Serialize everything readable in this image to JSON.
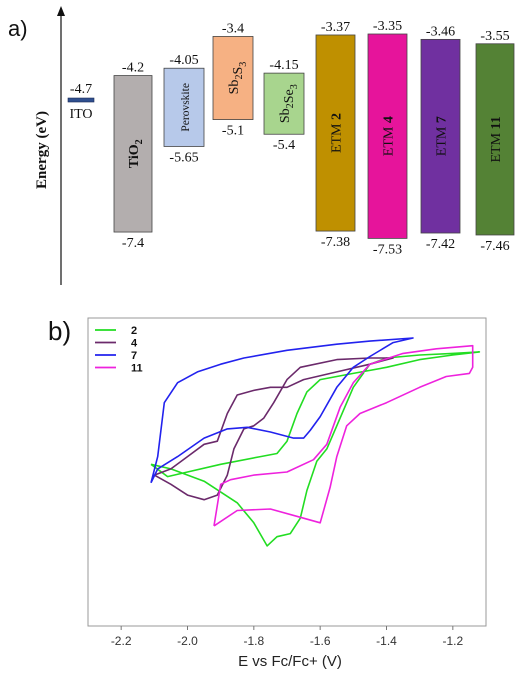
{
  "panel_a": {
    "label": "a)",
    "ylabel": "Energy (eV)",
    "levels": [
      {
        "name": "ITO",
        "lumo": -4.7,
        "homo": null,
        "lumo_text": "-4.7",
        "homo_text": "",
        "color": "#2f4f8f"
      },
      {
        "name": "TiO2",
        "lumo": -4.2,
        "homo": -7.4,
        "lumo_text": "-4.2",
        "homo_text": "-7.4",
        "color": "#b3aeae"
      },
      {
        "name": "Perovskite",
        "lumo": -4.05,
        "homo": -5.65,
        "lumo_text": "-4.05",
        "homo_text": "-5.65",
        "color": "#b7c9ea"
      },
      {
        "name": "Sb2S3",
        "lumo": -3.4,
        "homo": -5.1,
        "lumo_text": "-3.4",
        "homo_text": "-5.1",
        "color": "#f6b183"
      },
      {
        "name": "Sb2Se3",
        "lumo": -4.15,
        "homo": -5.4,
        "lumo_text": "-4.15",
        "homo_text": "-5.4",
        "color": "#a8d58e"
      },
      {
        "name": "ETM 2",
        "lumo": -3.37,
        "homo": -7.38,
        "lumo_text": "-3.37",
        "homo_text": "-7.38",
        "color": "#bf9000"
      },
      {
        "name": "ETM 4",
        "lumo": -3.35,
        "homo": -7.53,
        "lumo_text": "-3.35",
        "homo_text": "-7.53",
        "color": "#e6149b"
      },
      {
        "name": "ETM 7",
        "lumo": -3.46,
        "homo": -7.42,
        "lumo_text": "-3.46",
        "homo_text": "-7.42",
        "color": "#7030a0"
      },
      {
        "name": "ETM 11",
        "lumo": -3.55,
        "homo": -7.46,
        "lumo_text": "-3.55",
        "homo_text": "-7.46",
        "color": "#548235"
      }
    ]
  },
  "chart_data": {
    "type": "line",
    "panel_label": "b)",
    "title": "",
    "xlabel": "E vs Fc/Fc+ (V)",
    "ylabel": "",
    "xlim": [
      -2.3,
      -1.1
    ],
    "ylim": [
      -1,
      1
    ],
    "x_ticks": [
      -2.2,
      -2.0,
      -1.8,
      -1.6,
      -1.4,
      -1.2
    ],
    "x_tick_labels": [
      "-2.2",
      "-2.0",
      "-1.8",
      "-1.6",
      "-1.4",
      "-1.2"
    ],
    "legend_position": "top-left",
    "series": [
      {
        "name": "2",
        "color": "#22dd22",
        "points": [
          [
            -2.11,
            0.05
          ],
          [
            -2.05,
            0.02
          ],
          [
            -1.95,
            -0.06
          ],
          [
            -1.85,
            -0.2
          ],
          [
            -1.8,
            -0.33
          ],
          [
            -1.76,
            -0.48
          ],
          [
            -1.73,
            -0.42
          ],
          [
            -1.69,
            -0.4
          ],
          [
            -1.66,
            -0.3
          ],
          [
            -1.64,
            -0.12
          ],
          [
            -1.61,
            0.07
          ],
          [
            -1.58,
            0.15
          ],
          [
            -1.55,
            0.3
          ],
          [
            -1.5,
            0.55
          ],
          [
            -1.45,
            0.7
          ],
          [
            -1.4,
            0.74
          ],
          [
            -1.3,
            0.76
          ],
          [
            -1.2,
            0.77
          ],
          [
            -1.12,
            0.78
          ],
          [
            -1.2,
            0.76
          ],
          [
            -1.3,
            0.73
          ],
          [
            -1.4,
            0.68
          ],
          [
            -1.5,
            0.64
          ],
          [
            -1.6,
            0.6
          ],
          [
            -1.64,
            0.52
          ],
          [
            -1.67,
            0.38
          ],
          [
            -1.7,
            0.2
          ],
          [
            -1.73,
            0.12
          ],
          [
            -1.78,
            0.1
          ],
          [
            -1.9,
            0.05
          ],
          [
            -2.0,
            0.0
          ],
          [
            -2.06,
            -0.03
          ],
          [
            -2.11,
            0.05
          ]
        ]
      },
      {
        "name": "4",
        "color": "#6b2a6b",
        "points": [
          [
            -2.1,
            -0.02
          ],
          [
            -2.05,
            -0.08
          ],
          [
            -2.0,
            -0.15
          ],
          [
            -1.95,
            -0.18
          ],
          [
            -1.91,
            -0.15
          ],
          [
            -1.88,
            -0.02
          ],
          [
            -1.86,
            0.15
          ],
          [
            -1.83,
            0.28
          ],
          [
            -1.8,
            0.3
          ],
          [
            -1.77,
            0.35
          ],
          [
            -1.74,
            0.45
          ],
          [
            -1.7,
            0.6
          ],
          [
            -1.66,
            0.68
          ],
          [
            -1.55,
            0.73
          ],
          [
            -1.45,
            0.74
          ],
          [
            -1.38,
            0.74
          ],
          [
            -1.45,
            0.7
          ],
          [
            -1.55,
            0.65
          ],
          [
            -1.65,
            0.6
          ],
          [
            -1.7,
            0.55
          ],
          [
            -1.75,
            0.55
          ],
          [
            -1.8,
            0.53
          ],
          [
            -1.85,
            0.5
          ],
          [
            -1.88,
            0.38
          ],
          [
            -1.91,
            0.2
          ],
          [
            -1.95,
            0.18
          ],
          [
            -2.0,
            0.1
          ],
          [
            -2.05,
            0.02
          ],
          [
            -2.1,
            -0.02
          ]
        ]
      },
      {
        "name": "7",
        "color": "#2222ee",
        "points": [
          [
            -2.11,
            -0.07
          ],
          [
            -2.09,
            0.1
          ],
          [
            -2.07,
            0.45
          ],
          [
            -2.03,
            0.58
          ],
          [
            -1.97,
            0.65
          ],
          [
            -1.9,
            0.7
          ],
          [
            -1.83,
            0.74
          ],
          [
            -1.7,
            0.79
          ],
          [
            -1.55,
            0.83
          ],
          [
            -1.45,
            0.85
          ],
          [
            -1.32,
            0.87
          ],
          [
            -1.38,
            0.84
          ],
          [
            -1.45,
            0.75
          ],
          [
            -1.5,
            0.68
          ],
          [
            -1.55,
            0.55
          ],
          [
            -1.6,
            0.36
          ],
          [
            -1.63,
            0.27
          ],
          [
            -1.65,
            0.22
          ],
          [
            -1.68,
            0.22
          ],
          [
            -1.75,
            0.26
          ],
          [
            -1.82,
            0.29
          ],
          [
            -1.88,
            0.28
          ],
          [
            -1.95,
            0.22
          ],
          [
            -2.03,
            0.1
          ],
          [
            -2.09,
            0.02
          ],
          [
            -2.11,
            -0.07
          ]
        ]
      },
      {
        "name": "11",
        "color": "#ee22dd",
        "points": [
          [
            -1.92,
            -0.35
          ],
          [
            -1.9,
            -0.08
          ],
          [
            -1.87,
            -0.05
          ],
          [
            -1.8,
            -0.02
          ],
          [
            -1.7,
            0.0
          ],
          [
            -1.62,
            0.08
          ],
          [
            -1.58,
            0.18
          ],
          [
            -1.54,
            0.42
          ],
          [
            -1.5,
            0.58
          ],
          [
            -1.45,
            0.7
          ],
          [
            -1.35,
            0.77
          ],
          [
            -1.25,
            0.8
          ],
          [
            -1.14,
            0.82
          ],
          [
            -1.14,
            0.68
          ],
          [
            -1.15,
            0.64
          ],
          [
            -1.22,
            0.62
          ],
          [
            -1.3,
            0.55
          ],
          [
            -1.4,
            0.45
          ],
          [
            -1.48,
            0.38
          ],
          [
            -1.52,
            0.3
          ],
          [
            -1.55,
            0.1
          ],
          [
            -1.57,
            -0.1
          ],
          [
            -1.6,
            -0.33
          ],
          [
            -1.65,
            -0.3
          ],
          [
            -1.75,
            -0.24
          ],
          [
            -1.85,
            -0.25
          ],
          [
            -1.92,
            -0.35
          ]
        ]
      }
    ]
  }
}
